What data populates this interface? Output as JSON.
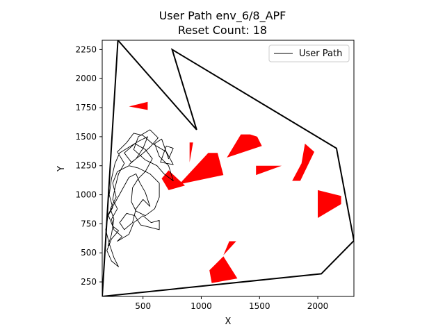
{
  "chart_data": {
    "type": "line",
    "title": "User Path env_6/8_APF",
    "subtitle": "Reset Count: 18",
    "xlabel": "X",
    "ylabel": "Y",
    "xlim": [
      150,
      2310
    ],
    "ylim": [
      125,
      2330
    ],
    "xticks": [
      500,
      1000,
      1500,
      2000
    ],
    "yticks": [
      250,
      500,
      750,
      1000,
      1250,
      1500,
      1750,
      2000,
      2250
    ],
    "grid": false,
    "legend": {
      "position": "top-right",
      "entries": [
        "User Path"
      ]
    },
    "colors": {
      "path": "#000000",
      "obstacle": "#ff0000",
      "boundary": "#000000"
    },
    "boundary": [
      [
        150,
        125
      ],
      [
        285,
        2330
      ],
      [
        960,
        1560
      ],
      [
        750,
        2250
      ],
      [
        2160,
        1400
      ],
      [
        2310,
        605
      ],
      [
        2030,
        320
      ],
      [
        150,
        125
      ]
    ],
    "obstacles": [
      [
        [
          380,
          1760
        ],
        [
          540,
          1800
        ],
        [
          540,
          1730
        ]
      ],
      [
        [
          720,
          1040
        ],
        [
          860,
          1080
        ],
        [
          720,
          1210
        ],
        [
          660,
          1140
        ]
      ],
      [
        [
          900,
          1450
        ],
        [
          930,
          1450
        ],
        [
          900,
          1280
        ]
      ],
      [
        [
          810,
          1090
        ],
        [
          1060,
          1360
        ],
        [
          1140,
          1360
        ],
        [
          1190,
          1170
        ]
      ],
      [
        [
          1220,
          1320
        ],
        [
          1340,
          1520
        ],
        [
          1420,
          1520
        ],
        [
          1480,
          1500
        ],
        [
          1520,
          1420
        ]
      ],
      [
        [
          1470,
          1250
        ],
        [
          1470,
          1170
        ],
        [
          1690,
          1250
        ]
      ],
      [
        [
          1780,
          1120
        ],
        [
          1850,
          1120
        ],
        [
          1970,
          1370
        ],
        [
          1890,
          1440
        ],
        [
          1860,
          1270
        ]
      ],
      [
        [
          2000,
          1040
        ],
        [
          2200,
          990
        ],
        [
          2200,
          920
        ],
        [
          2000,
          800
        ]
      ],
      [
        [
          1070,
          350
        ],
        [
          1090,
          240
        ],
        [
          1310,
          280
        ],
        [
          1190,
          470
        ]
      ],
      [
        [
          1190,
          480
        ],
        [
          1240,
          600
        ],
        [
          1300,
          600
        ]
      ]
    ],
    "series": [
      {
        "name": "User Path",
        "points": [
          [
            200,
            560
          ],
          [
            230,
            660
          ],
          [
            250,
            790
          ],
          [
            220,
            880
          ],
          [
            270,
            980
          ],
          [
            240,
            1100
          ],
          [
            280,
            1200
          ],
          [
            380,
            1250
          ],
          [
            460,
            1230
          ],
          [
            560,
            1180
          ],
          [
            640,
            1100
          ],
          [
            640,
            980
          ],
          [
            600,
            880
          ],
          [
            520,
            820
          ],
          [
            440,
            860
          ],
          [
            400,
            940
          ],
          [
            410,
            1060
          ],
          [
            460,
            1140
          ],
          [
            520,
            1200
          ],
          [
            580,
            1310
          ],
          [
            520,
            1390
          ],
          [
            430,
            1440
          ],
          [
            340,
            1360
          ],
          [
            400,
            1280
          ],
          [
            480,
            1340
          ],
          [
            560,
            1410
          ],
          [
            630,
            1490
          ],
          [
            560,
            1560
          ],
          [
            460,
            1500
          ],
          [
            420,
            1390
          ],
          [
            520,
            1300
          ],
          [
            620,
            1250
          ],
          [
            680,
            1180
          ],
          [
            760,
            1120
          ],
          [
            720,
            1250
          ],
          [
            640,
            1330
          ],
          [
            600,
            1440
          ],
          [
            660,
            1480
          ],
          [
            720,
            1310
          ],
          [
            760,
            1400
          ],
          [
            700,
            1420
          ],
          [
            650,
            1280
          ],
          [
            760,
            1260
          ],
          [
            700,
            1370
          ],
          [
            580,
            1440
          ],
          [
            500,
            1510
          ],
          [
            420,
            1530
          ],
          [
            360,
            1450
          ],
          [
            280,
            1370
          ],
          [
            340,
            1270
          ],
          [
            290,
            1180
          ],
          [
            260,
            1060
          ],
          [
            240,
            960
          ],
          [
            280,
            880
          ],
          [
            230,
            790
          ],
          [
            250,
            700
          ],
          [
            320,
            640
          ],
          [
            280,
            600
          ],
          [
            380,
            660
          ],
          [
            420,
            760
          ],
          [
            500,
            820
          ],
          [
            570,
            760
          ],
          [
            640,
            780
          ],
          [
            640,
            700
          ],
          [
            560,
            720
          ],
          [
            480,
            740
          ],
          [
            430,
            820
          ],
          [
            360,
            840
          ],
          [
            300,
            760
          ],
          [
            340,
            700
          ],
          [
            410,
            760
          ],
          [
            440,
            880
          ],
          [
            500,
            960
          ],
          [
            560,
            900
          ],
          [
            520,
            1020
          ],
          [
            470,
            1110
          ],
          [
            440,
            1180
          ],
          [
            380,
            1150
          ],
          [
            330,
            1060
          ],
          [
            270,
            950
          ],
          [
            200,
            830
          ],
          [
            240,
            730
          ],
          [
            290,
            690
          ],
          [
            230,
            620
          ],
          [
            190,
            520
          ],
          [
            230,
            430
          ],
          [
            290,
            380
          ],
          [
            250,
            460
          ],
          [
            210,
            580
          ],
          [
            180,
            700
          ],
          [
            200,
            820
          ],
          [
            240,
            890
          ],
          [
            210,
            1000
          ],
          [
            230,
            1140
          ],
          [
            260,
            1270
          ],
          [
            300,
            1360
          ],
          [
            380,
            1410
          ],
          [
            460,
            1460
          ],
          [
            540,
            1500
          ],
          [
            500,
            1400
          ],
          [
            440,
            1310
          ],
          [
            380,
            1260
          ]
        ]
      }
    ]
  }
}
